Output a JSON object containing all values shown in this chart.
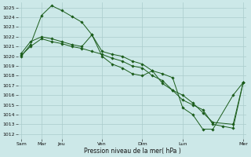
{
  "background_color": "#cce8e8",
  "grid_color": "#aacccc",
  "line_color": "#1a5c1a",
  "xlabel": "Pression niveau de la mer( hPa )",
  "ylim": [
    1011.5,
    1025.5
  ],
  "figsize": [
    3.2,
    2.0
  ],
  "dpi": 100,
  "day_positions": [
    0,
    1,
    2,
    4,
    6,
    8,
    11
  ],
  "day_labels": [
    "Sam",
    "Mar",
    "Jeu",
    "Ven",
    "Dim",
    "Lun",
    "Mer"
  ],
  "xlim": [
    -0.15,
    11.15
  ],
  "series1_x": [
    0,
    0.45,
    1.0,
    1.5,
    2.0,
    2.5,
    3.0,
    3.5,
    4.0,
    4.5,
    5.0,
    5.5,
    6.0,
    6.5,
    7.0,
    7.5,
    8.0,
    8.5,
    9.0,
    9.5,
    10.0,
    10.5,
    11.0
  ],
  "series1_y": [
    1020.0,
    1021.2,
    1024.2,
    1025.2,
    1024.7,
    1024.1,
    1023.5,
    1022.2,
    1020.0,
    1019.2,
    1018.8,
    1018.2,
    1018.0,
    1018.5,
    1017.2,
    1016.5,
    1015.5,
    1015.0,
    1014.5,
    1013.0,
    1012.8,
    1012.6,
    1017.3
  ],
  "series2_x": [
    0,
    0.45,
    1.0,
    1.5,
    2.0,
    2.5,
    3.0,
    3.5,
    4.0,
    4.5,
    5.0,
    5.5,
    6.0,
    6.5,
    7.0,
    7.5,
    8.0,
    8.5,
    9.0,
    9.5,
    10.5,
    11.0
  ],
  "series2_y": [
    1020.3,
    1021.5,
    1022.0,
    1021.8,
    1021.5,
    1021.2,
    1021.0,
    1022.2,
    1020.5,
    1020.2,
    1020.0,
    1019.5,
    1019.2,
    1018.5,
    1018.2,
    1017.8,
    1014.7,
    1014.0,
    1012.5,
    1012.5,
    1016.0,
    1017.3
  ],
  "series3_x": [
    0,
    0.45,
    1.0,
    1.5,
    2.0,
    2.5,
    3.0,
    3.5,
    4.0,
    4.5,
    5.0,
    5.5,
    6.0,
    6.5,
    7.0,
    7.5,
    8.0,
    8.5,
    9.0,
    9.5,
    10.5,
    11.0
  ],
  "series3_y": [
    1020.1,
    1021.0,
    1021.8,
    1021.5,
    1021.3,
    1021.0,
    1020.8,
    1020.5,
    1020.2,
    1019.8,
    1019.5,
    1019.0,
    1018.8,
    1018.0,
    1017.5,
    1016.5,
    1016.0,
    1015.2,
    1014.2,
    1013.2,
    1013.0,
    1017.3
  ]
}
